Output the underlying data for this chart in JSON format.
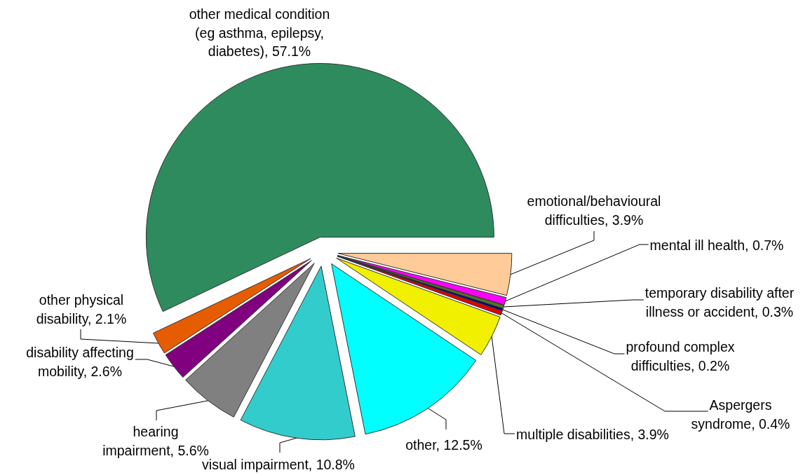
{
  "chart_data": {
    "type": "pie",
    "categories": [
      "emotional/behavioural difficulties",
      "mental ill health",
      "temporary disability after illness or accident",
      "profound complex difficulties",
      "Aspergers syndrome",
      "multiple disabilities",
      "other",
      "visual impairment",
      "hearing impairment",
      "disability affecting mobility",
      "other physical disability",
      "other medical condition (eg asthma, epilepsy, diabetes)"
    ],
    "values": [
      3.9,
      0.7,
      0.3,
      0.2,
      0.4,
      3.9,
      12.5,
      10.8,
      5.6,
      2.6,
      2.1,
      57.1
    ],
    "value_labels": [
      "3.9%",
      "0.7%",
      "0.3%",
      "0.2%",
      "0.4%",
      "3.9%",
      "12.5%",
      "10.8%",
      "5.6%",
      "2.6%",
      "2.1%",
      "57.1%"
    ],
    "colors": [
      "#ffcc99",
      "#ff00ff",
      "#55771f",
      "#000080",
      "#e00000",
      "#f0f000",
      "#00ffff",
      "#33cccc",
      "#808080",
      "#800080",
      "#e65c00",
      "#2e8b5e"
    ],
    "legend": false
  }
}
